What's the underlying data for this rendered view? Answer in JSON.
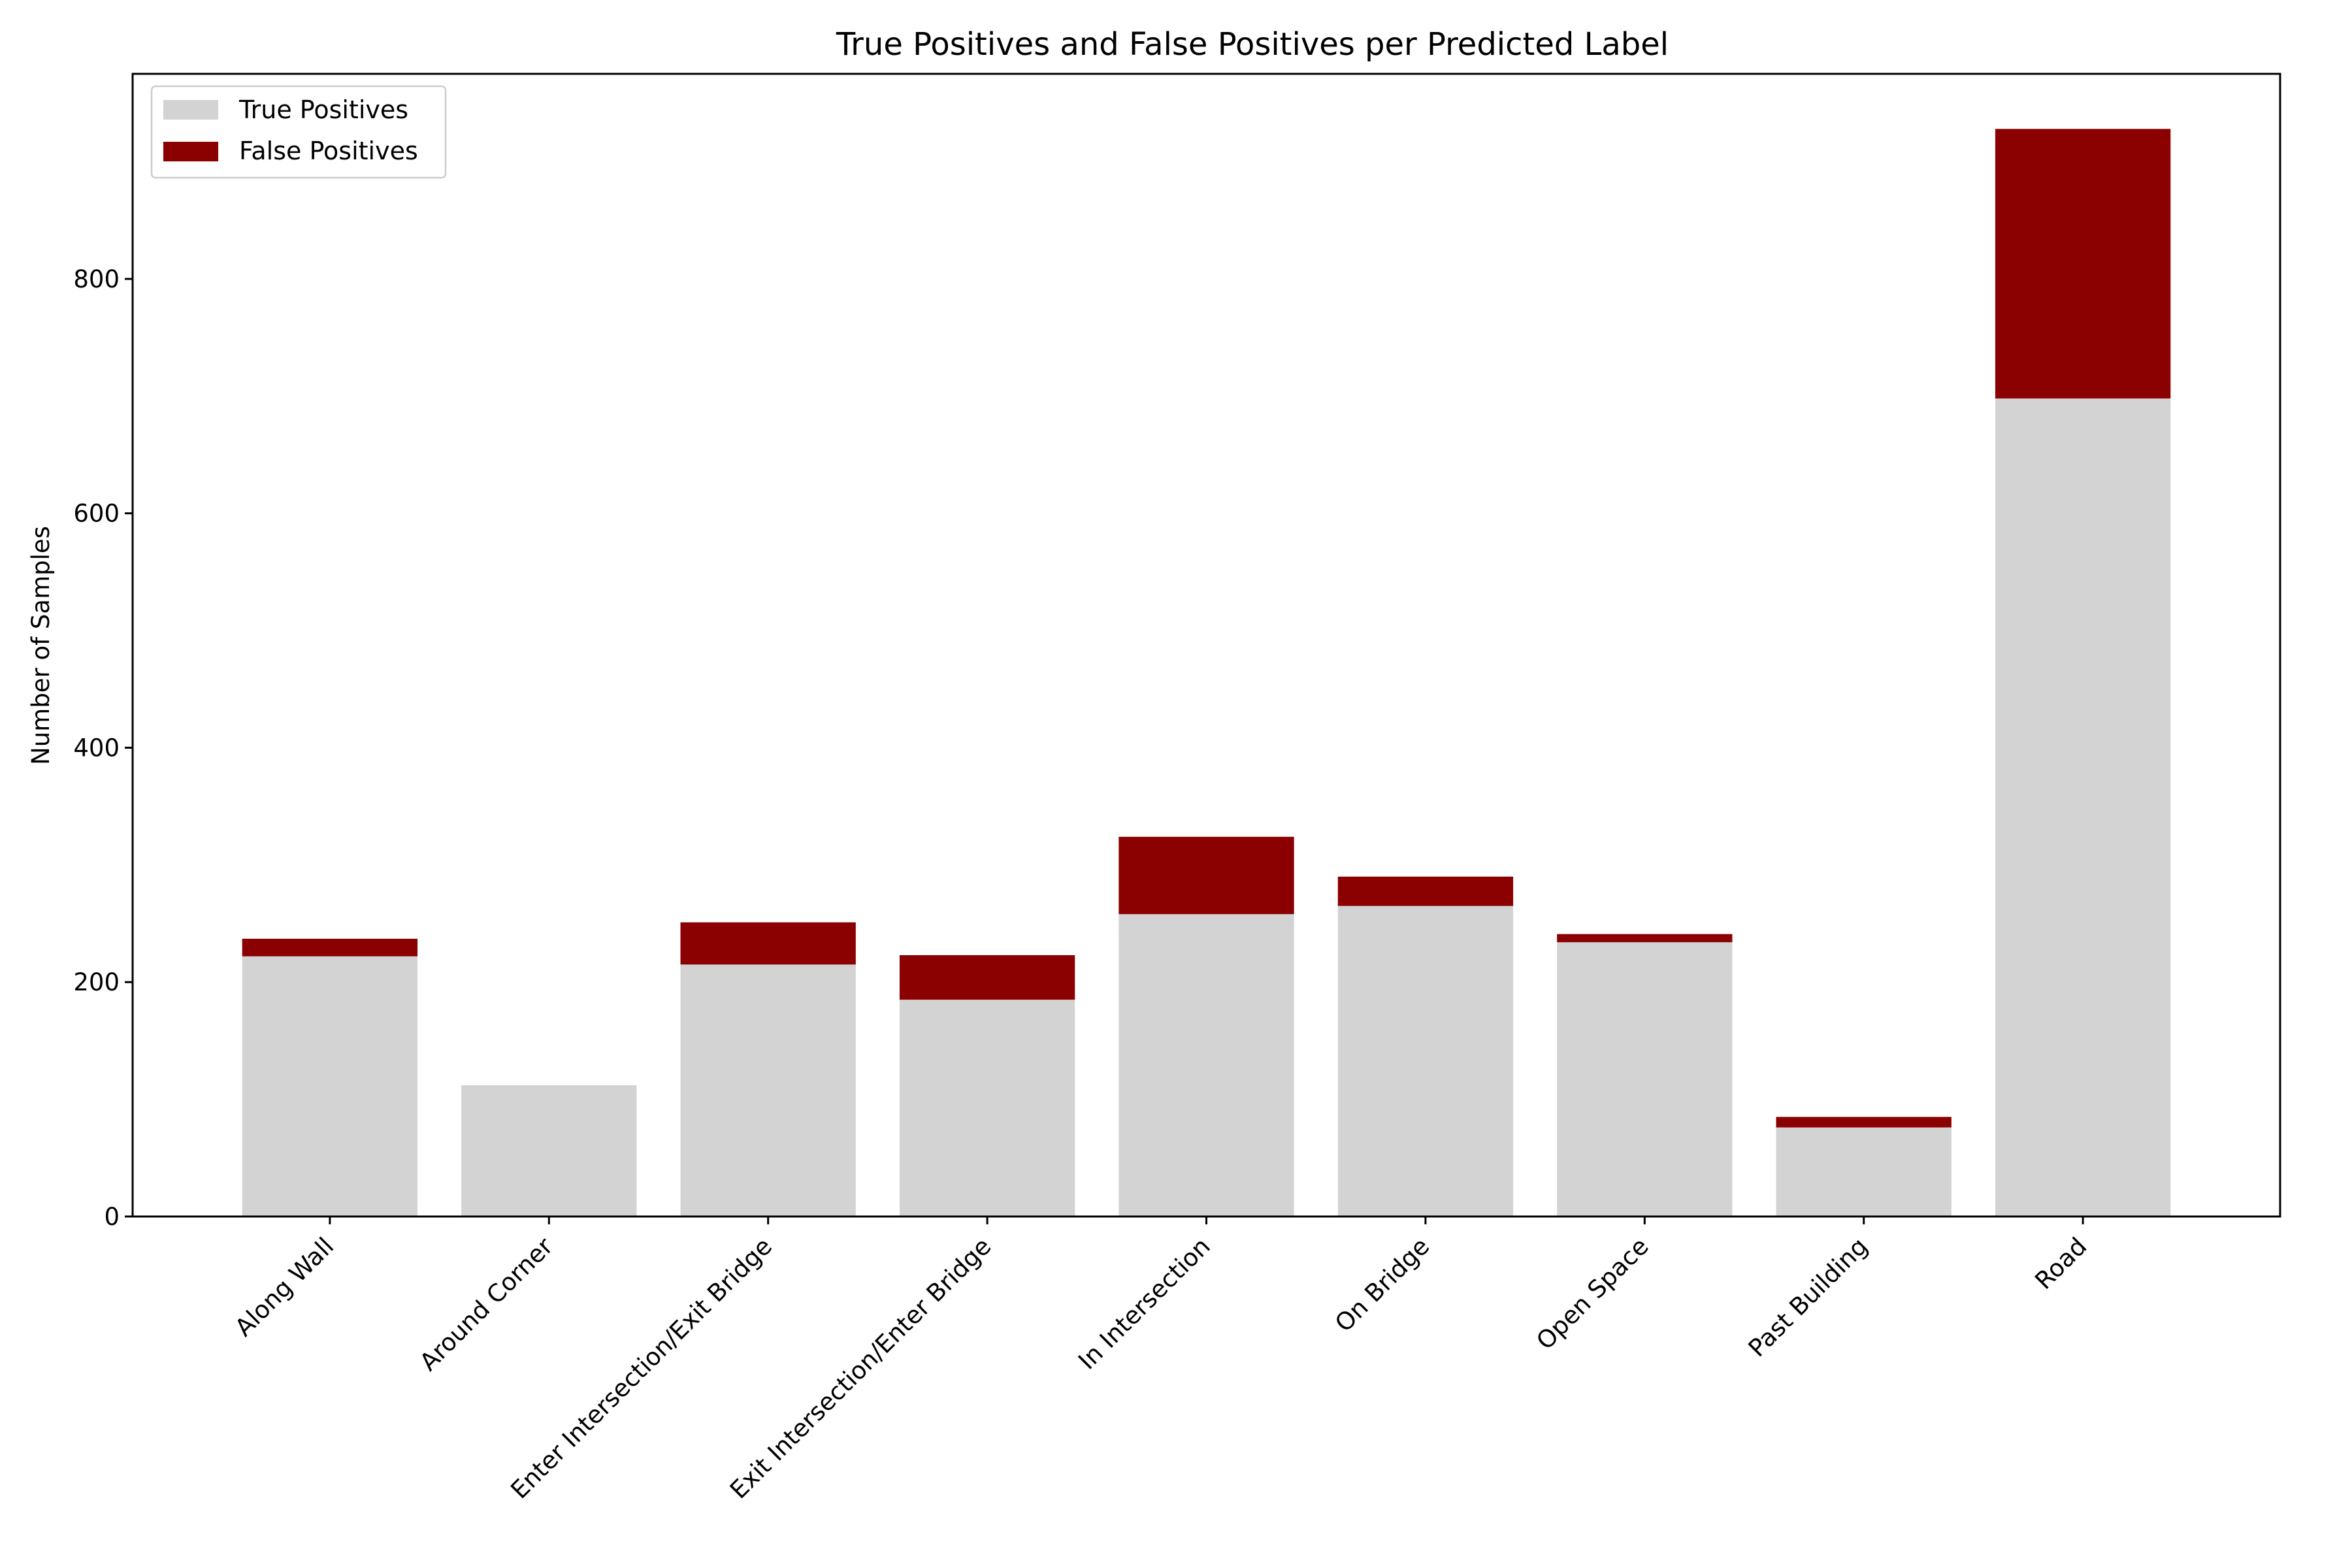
{
  "chart_data": {
    "type": "bar",
    "stacked": true,
    "title": "True Positives and False Positives per Predicted Label",
    "xlabel": "",
    "ylabel": "Number of Samples",
    "categories": [
      "Along Wall",
      "Around Corner",
      "Enter Intersection/Exit Bridge",
      "Exit Intersection/Enter Bridge",
      "In Intersection",
      "On Bridge",
      "Open Space",
      "Past Building",
      "Road"
    ],
    "series": [
      {
        "name": "True Positives",
        "color": "#d3d3d3",
        "values": [
          222,
          112,
          215,
          185,
          258,
          265,
          234,
          76,
          698
        ]
      },
      {
        "name": "False Positives",
        "color": "#8b0000",
        "values": [
          15,
          0,
          36,
          38,
          66,
          25,
          7,
          9,
          230
        ]
      }
    ],
    "ylim": [
      0,
      975
    ],
    "yticks": [
      0,
      200,
      400,
      600,
      800
    ],
    "grid": false,
    "legend": "upper-left"
  }
}
